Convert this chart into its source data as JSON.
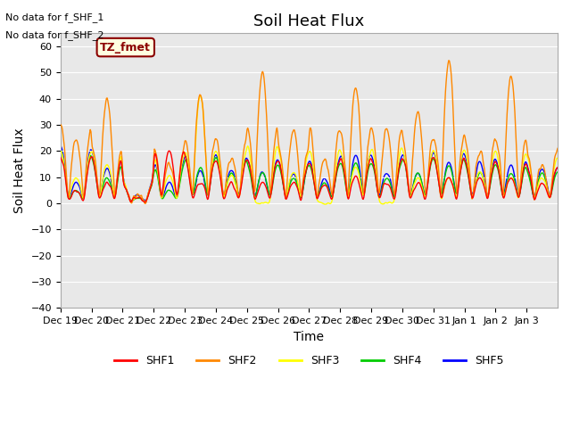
{
  "title": "Soil Heat Flux",
  "ylabel": "Soil Heat Flux",
  "xlabel": "Time",
  "ylim": [
    -40,
    65
  ],
  "yticks": [
    -40,
    -30,
    -20,
    -10,
    0,
    10,
    20,
    30,
    40,
    50,
    60
  ],
  "bg_color": "#e8e8e8",
  "annotation_text1": "No data for f_SHF_1",
  "annotation_text2": "No data for f_SHF_2",
  "box_label": "TZ_fmet",
  "legend_entries": [
    "SHF1",
    "SHF2",
    "SHF3",
    "SHF4",
    "SHF5"
  ],
  "line_colors": [
    "#ff0000",
    "#ff8800",
    "#ffff00",
    "#00cc00",
    "#0000ff"
  ],
  "line_widths": [
    1.0,
    1.0,
    1.0,
    1.0,
    1.0
  ],
  "tick_labels": [
    "Dec 19",
    "Dec 20",
    "Dec 21",
    "Dec 22",
    "Dec 23",
    "Dec 24",
    "Dec 25",
    "Dec 26",
    "Dec 27",
    "Dec 28",
    "Dec 29",
    "Dec 30",
    "Dec 31",
    "Jan 1",
    "Jan 2",
    "Jan 3"
  ],
  "title_fontsize": 13,
  "label_fontsize": 10,
  "tick_fontsize": 8
}
